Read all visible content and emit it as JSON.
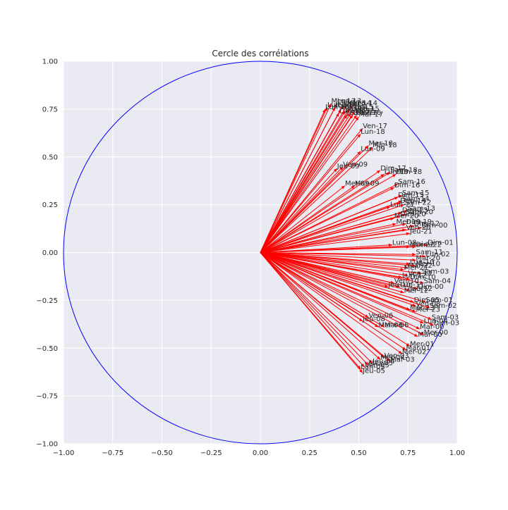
{
  "chart_data": {
    "type": "scatter",
    "title": "Cercle des corrélations",
    "xlabel": "",
    "ylabel": "",
    "xlim": [
      -1.0,
      1.0
    ],
    "ylim": [
      -1.0,
      1.0
    ],
    "xticks": [
      "−1.00",
      "−0.75",
      "−0.50",
      "−0.25",
      "0.00",
      "0.25",
      "0.50",
      "0.75",
      "1.00"
    ],
    "yticks": [
      "1.00",
      "0.75",
      "0.50",
      "0.25",
      "0.00",
      "−0.25",
      "−0.50",
      "−0.75",
      "−1.00"
    ],
    "grid": true,
    "background_color": "#EAEAF2",
    "circle_color": "#0000FF",
    "arrow_color": "#FF0000",
    "circle_radius": 1.0,
    "vectors": [
      {
        "label": "Mer-13",
        "x": 0.36,
        "y": 0.78
      },
      {
        "label": "Lun-13",
        "x": 0.39,
        "y": 0.78
      },
      {
        "label": "Jeu-13",
        "x": 0.42,
        "y": 0.77
      },
      {
        "label": "Mar-14",
        "x": 0.44,
        "y": 0.77
      },
      {
        "label": "Ven-14",
        "x": 0.47,
        "y": 0.77
      },
      {
        "label": "Lun-14",
        "x": 0.34,
        "y": 0.76
      },
      {
        "label": "Jeu-14",
        "x": 0.38,
        "y": 0.76
      },
      {
        "label": "Mer-15",
        "x": 0.41,
        "y": 0.75
      },
      {
        "label": "Mar-15",
        "x": 0.45,
        "y": 0.75
      },
      {
        "label": "Lun-15",
        "x": 0.33,
        "y": 0.75
      },
      {
        "label": "Ven-15",
        "x": 0.48,
        "y": 0.74
      },
      {
        "label": "Jeu-16",
        "x": 0.43,
        "y": 0.74
      },
      {
        "label": "Mer-16",
        "x": 0.46,
        "y": 0.73
      },
      {
        "label": "Lun-16",
        "x": 0.4,
        "y": 0.73
      },
      {
        "label": "Mar-16",
        "x": 0.49,
        "y": 0.72
      },
      {
        "label": "Jeu-17",
        "x": 0.44,
        "y": 0.72
      },
      {
        "label": "Lun-17",
        "x": 0.47,
        "y": 0.72
      },
      {
        "label": "Mar-17",
        "x": 0.5,
        "y": 0.71
      },
      {
        "label": "Ven-17",
        "x": 0.52,
        "y": 0.65
      },
      {
        "label": "Lun-18",
        "x": 0.51,
        "y": 0.62
      },
      {
        "label": "Mer-18",
        "x": 0.55,
        "y": 0.56
      },
      {
        "label": "Mar-18",
        "x": 0.57,
        "y": 0.55
      },
      {
        "label": "Lun-09",
        "x": 0.51,
        "y": 0.53
      },
      {
        "label": "Ven-09",
        "x": 0.42,
        "y": 0.45
      },
      {
        "label": "Jeu-09",
        "x": 0.39,
        "y": 0.44
      },
      {
        "label": "Dim-17",
        "x": 0.61,
        "y": 0.43
      },
      {
        "label": "Sam-18",
        "x": 0.66,
        "y": 0.42
      },
      {
        "label": "Dim-18",
        "x": 0.69,
        "y": 0.41
      },
      {
        "label": "Lun-19",
        "x": 0.63,
        "y": 0.41
      },
      {
        "label": "Mar-09",
        "x": 0.48,
        "y": 0.35
      },
      {
        "label": "Mer-09",
        "x": 0.43,
        "y": 0.35
      },
      {
        "label": "Sam-16",
        "x": 0.7,
        "y": 0.36
      },
      {
        "label": "Dim-16",
        "x": 0.68,
        "y": 0.34
      },
      {
        "label": "Sam-15",
        "x": 0.72,
        "y": 0.3
      },
      {
        "label": "Dim-15",
        "x": 0.7,
        "y": 0.29
      },
      {
        "label": "Sam-14",
        "x": 0.72,
        "y": 0.27
      },
      {
        "label": "Dim-14",
        "x": 0.71,
        "y": 0.26
      },
      {
        "label": "Sam-22",
        "x": 0.73,
        "y": 0.25
      },
      {
        "label": "Lun-21",
        "x": 0.66,
        "y": 0.24
      },
      {
        "label": "Sam-13",
        "x": 0.75,
        "y": 0.22
      },
      {
        "label": "Dim-13",
        "x": 0.72,
        "y": 0.21
      },
      {
        "label": "Sam-20",
        "x": 0.74,
        "y": 0.2
      },
      {
        "label": "Dim-20",
        "x": 0.71,
        "y": 0.19
      },
      {
        "label": "Mer-20",
        "x": 0.68,
        "y": 0.18
      },
      {
        "label": "Mer-19",
        "x": 0.69,
        "y": 0.15
      },
      {
        "label": "Dim-19",
        "x": 0.74,
        "y": 0.15
      },
      {
        "label": "Dim-12",
        "x": 0.78,
        "y": 0.14
      },
      {
        "label": "Dim-00",
        "x": 0.82,
        "y": 0.13
      },
      {
        "label": "Ven-20",
        "x": 0.74,
        "y": 0.12
      },
      {
        "label": "Jeu-21",
        "x": 0.76,
        "y": 0.1
      },
      {
        "label": "Dim-01",
        "x": 0.85,
        "y": 0.04
      },
      {
        "label": "Lun-08",
        "x": 0.67,
        "y": 0.04
      },
      {
        "label": "Dim-22",
        "x": 0.79,
        "y": 0.03
      },
      {
        "label": "Mer-22",
        "x": 0.76,
        "y": 0.03
      },
      {
        "label": "Sam-11",
        "x": 0.79,
        "y": -0.01
      },
      {
        "label": "Lun-02",
        "x": 0.84,
        "y": -0.02
      },
      {
        "label": "Mar-20",
        "x": 0.79,
        "y": -0.04
      },
      {
        "label": "Lun-10",
        "x": 0.76,
        "y": -0.06
      },
      {
        "label": "Mer-10",
        "x": 0.79,
        "y": -0.07
      },
      {
        "label": "Mar-22",
        "x": 0.75,
        "y": -0.08
      },
      {
        "label": "Mer-21",
        "x": 0.73,
        "y": -0.09
      },
      {
        "label": "Sam-03",
        "x": 0.82,
        "y": -0.11
      },
      {
        "label": "Ven-11",
        "x": 0.75,
        "y": -0.12
      },
      {
        "label": "Lun-12",
        "x": 0.72,
        "y": -0.13
      },
      {
        "label": "Dim-10",
        "x": 0.76,
        "y": -0.14
      },
      {
        "label": "Sam-04",
        "x": 0.83,
        "y": -0.16
      },
      {
        "label": "Ven-10",
        "x": 0.68,
        "y": -0.16
      },
      {
        "label": "Jeu-10",
        "x": 0.65,
        "y": -0.18
      },
      {
        "label": "Lun-11",
        "x": 0.71,
        "y": -0.18
      },
      {
        "label": "Dim-00",
        "x": 0.8,
        "y": -0.19
      },
      {
        "label": "Jeu-12",
        "x": 0.76,
        "y": -0.2
      },
      {
        "label": "Mer-12",
        "x": 0.73,
        "y": -0.21
      },
      {
        "label": "Sam-01",
        "x": 0.84,
        "y": -0.26
      },
      {
        "label": "Dim-05",
        "x": 0.78,
        "y": -0.26
      },
      {
        "label": "Ven-08",
        "x": 0.79,
        "y": -0.28
      },
      {
        "label": "Sam-02",
        "x": 0.86,
        "y": -0.29
      },
      {
        "label": "Mar-23",
        "x": 0.76,
        "y": -0.3
      },
      {
        "label": "Mer-23",
        "x": 0.79,
        "y": -0.31
      },
      {
        "label": "Sam-03",
        "x": 0.87,
        "y": -0.35
      },
      {
        "label": "Ven-06",
        "x": 0.55,
        "y": -0.34
      },
      {
        "label": "Jeu-08",
        "x": 0.52,
        "y": -0.36
      },
      {
        "label": "Lun-04",
        "x": 0.83,
        "y": -0.37
      },
      {
        "label": "Dim-03",
        "x": 0.88,
        "y": -0.38
      },
      {
        "label": "Mar-06",
        "x": 0.63,
        "y": -0.39
      },
      {
        "label": "Mer-06",
        "x": 0.6,
        "y": -0.39
      },
      {
        "label": "Mar-00",
        "x": 0.81,
        "y": -0.4
      },
      {
        "label": "Mer-00",
        "x": 0.83,
        "y": -0.43
      },
      {
        "label": "Mar-00",
        "x": 0.8,
        "y": -0.44
      },
      {
        "label": "Mer-01",
        "x": 0.76,
        "y": -0.49
      },
      {
        "label": "Mar-01",
        "x": 0.74,
        "y": -0.51
      },
      {
        "label": "Mer-02",
        "x": 0.72,
        "y": -0.53
      },
      {
        "label": "Ven-03",
        "x": 0.63,
        "y": -0.55
      },
      {
        "label": "Mer-04",
        "x": 0.61,
        "y": -0.56
      },
      {
        "label": "Mar-03",
        "x": 0.66,
        "y": -0.57
      },
      {
        "label": "Jeu-04",
        "x": 0.57,
        "y": -0.58
      },
      {
        "label": "Mer-05",
        "x": 0.55,
        "y": -0.59
      },
      {
        "label": "Ven-05",
        "x": 0.53,
        "y": -0.6
      },
      {
        "label": "Lun-05",
        "x": 0.51,
        "y": -0.61
      },
      {
        "label": "Jeu-05",
        "x": 0.52,
        "y": -0.63
      }
    ]
  }
}
